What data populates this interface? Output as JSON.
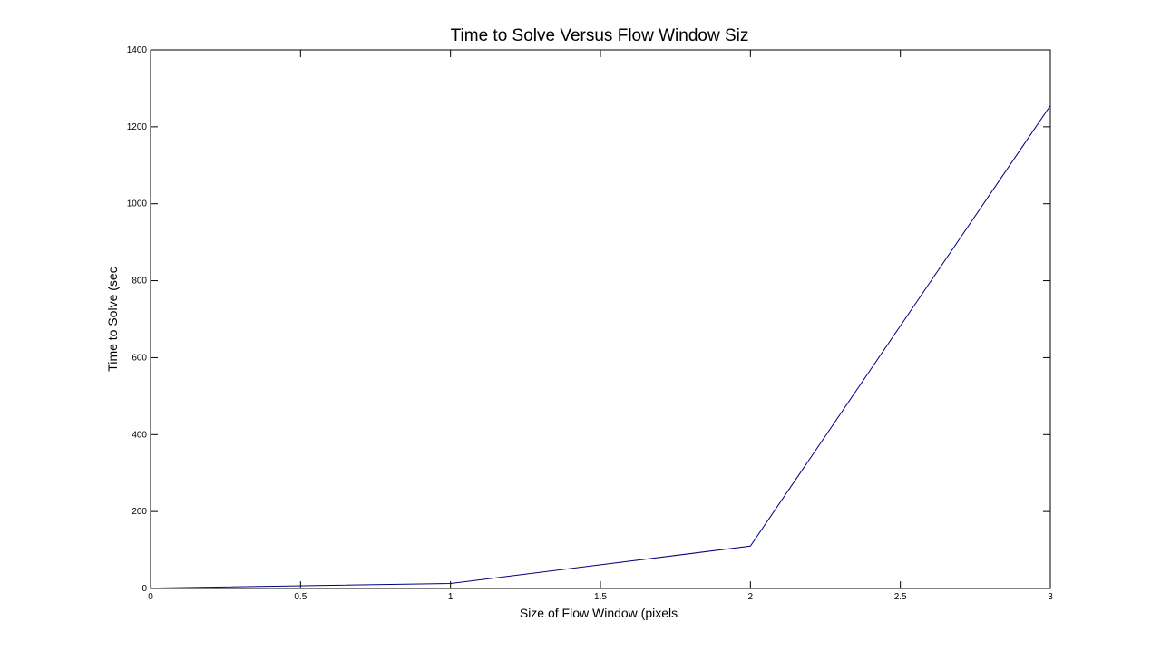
{
  "chart_data": {
    "type": "line",
    "title": "Time to Solve Versus Flow Window Siz",
    "xlabel": "Size of Flow Window (pixels",
    "ylabel": "Time to Solve (sec",
    "xlim": [
      0,
      3
    ],
    "ylim": [
      0,
      1400
    ],
    "xticks": [
      "0",
      "0.5",
      "1",
      "1.5",
      "2",
      "2.5",
      "3"
    ],
    "yticks": [
      "0",
      "200",
      "400",
      "600",
      "800",
      "1000",
      "1200",
      "1400"
    ],
    "grid": false,
    "series": [
      {
        "color": "#00007f",
        "x": [
          0,
          1,
          2,
          3
        ],
        "y": [
          1,
          13,
          110,
          1255
        ]
      }
    ]
  }
}
